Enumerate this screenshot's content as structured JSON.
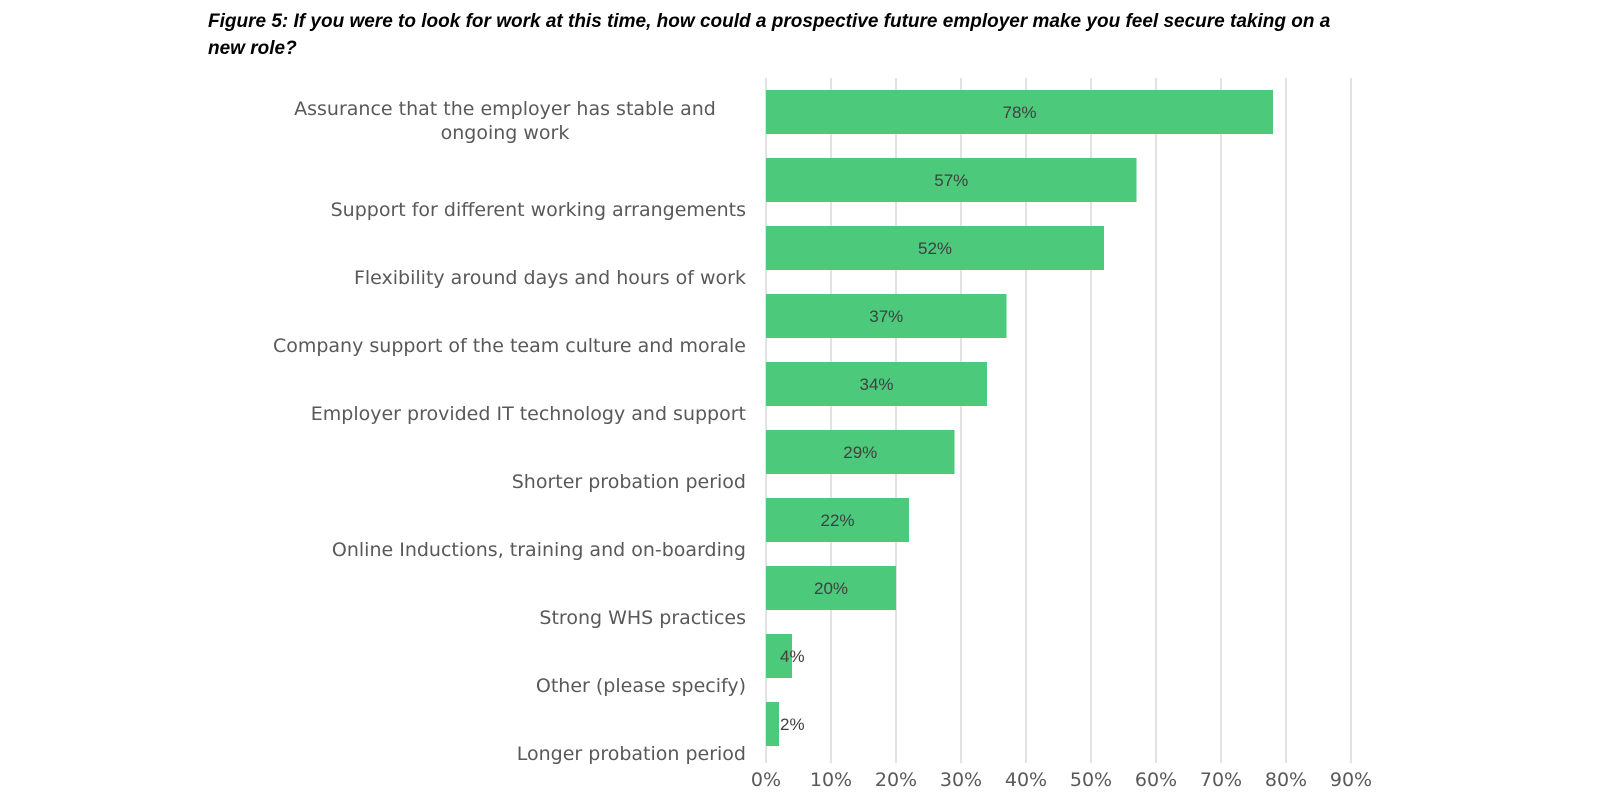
{
  "figure": {
    "title": "Figure 5: If you were to look for work at this time, how could a prospective future employer make you feel secure taking on a new role?"
  },
  "chart_data": {
    "type": "bar",
    "orientation": "horizontal",
    "categories": [
      "Assurance that the employer has stable and ongoing work",
      "Support for different working arrangements",
      "Flexibility around days and hours of work",
      "Company support of the team culture and morale",
      "Employer provided IT technology and support",
      "Shorter probation period",
      "Online Inductions, training and on-boarding",
      "Strong WHS practices",
      "Other (please specify)",
      "Longer probation period"
    ],
    "values": [
      78,
      57,
      52,
      37,
      34,
      29,
      22,
      20,
      4,
      2
    ],
    "data_labels": [
      "78%",
      "57%",
      "52%",
      "37%",
      "34%",
      "29%",
      "22%",
      "20%",
      "4%",
      "2%"
    ],
    "x_ticks": [
      "0%",
      "10%",
      "20%",
      "30%",
      "40%",
      "50%",
      "60%",
      "70%",
      "80%",
      "90%"
    ],
    "xlim": [
      0,
      90
    ],
    "unit": "%",
    "grid": "vertical",
    "legend": "none",
    "bar_color": "#4cc97a"
  }
}
